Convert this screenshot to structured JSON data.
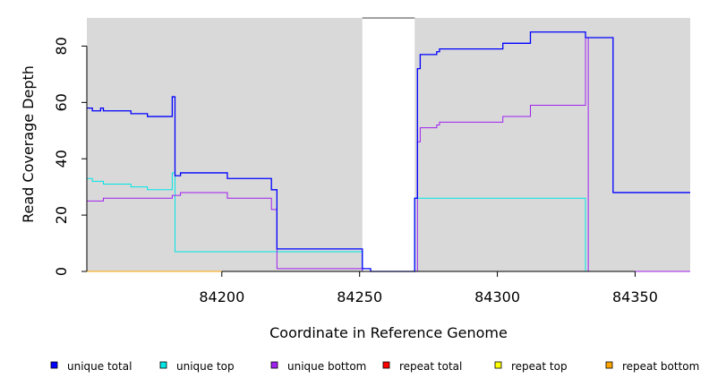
{
  "chart_data": {
    "type": "line",
    "xlabel": "Coordinate in Reference Genome",
    "ylabel": "Read Coverage Depth",
    "xlim": [
      84151,
      84370
    ],
    "ylim": [
      0,
      90
    ],
    "x_ticks": [
      84200,
      84250,
      84300,
      84350
    ],
    "y_ticks": [
      0,
      20,
      40,
      60,
      80
    ],
    "grid": false,
    "background": "#d9d9d9",
    "gap_region": [
      84251,
      84270
    ],
    "legend_position": "bottom",
    "series": [
      {
        "name": "unique total",
        "color": "#0000ff",
        "points": [
          [
            84151,
            58
          ],
          [
            84153,
            57
          ],
          [
            84156,
            58
          ],
          [
            84157,
            57
          ],
          [
            84167,
            56
          ],
          [
            84173,
            55
          ],
          [
            84182,
            62
          ],
          [
            84183,
            34
          ],
          [
            84185,
            35
          ],
          [
            84202,
            33
          ],
          [
            84218,
            29
          ],
          [
            84220,
            8
          ],
          [
            84251,
            1
          ],
          [
            84254,
            0
          ],
          [
            84270,
            26
          ],
          [
            84271,
            72
          ],
          [
            84272,
            77
          ],
          [
            84278,
            78
          ],
          [
            84279,
            79
          ],
          [
            84302,
            81
          ],
          [
            84312,
            85
          ],
          [
            84332,
            83
          ],
          [
            84342,
            28
          ],
          [
            84370,
            28
          ]
        ]
      },
      {
        "name": "unique top",
        "color": "#00e5e5",
        "points": [
          [
            84151,
            33
          ],
          [
            84153,
            32
          ],
          [
            84157,
            31
          ],
          [
            84167,
            30
          ],
          [
            84173,
            29
          ],
          [
            84182,
            35
          ],
          [
            84183,
            7
          ],
          [
            84251,
            0
          ],
          [
            84270,
            26
          ],
          [
            84332,
            0
          ],
          [
            84370,
            0
          ]
        ]
      },
      {
        "name": "unique bottom",
        "color": "#a020f0",
        "points": [
          [
            84151,
            25
          ],
          [
            84157,
            26
          ],
          [
            84182,
            27
          ],
          [
            84185,
            28
          ],
          [
            84202,
            26
          ],
          [
            84218,
            22
          ],
          [
            84220,
            1
          ],
          [
            84251,
            0
          ],
          [
            84271,
            46
          ],
          [
            84272,
            51
          ],
          [
            84278,
            52
          ],
          [
            84279,
            53
          ],
          [
            84302,
            55
          ],
          [
            84312,
            59
          ],
          [
            84332,
            83
          ],
          [
            84333,
            0
          ],
          [
            84370,
            0
          ]
        ]
      },
      {
        "name": "repeat total",
        "color": "#ff0000",
        "points": [
          [
            84151,
            0
          ],
          [
            84370,
            0
          ]
        ]
      },
      {
        "name": "repeat top",
        "color": "#ffff00",
        "points": [
          [
            84151,
            0
          ],
          [
            84370,
            0
          ]
        ]
      },
      {
        "name": "repeat bottom",
        "color": "#ffa500",
        "points": [
          [
            84151,
            0
          ],
          [
            84370,
            0
          ]
        ]
      }
    ]
  }
}
